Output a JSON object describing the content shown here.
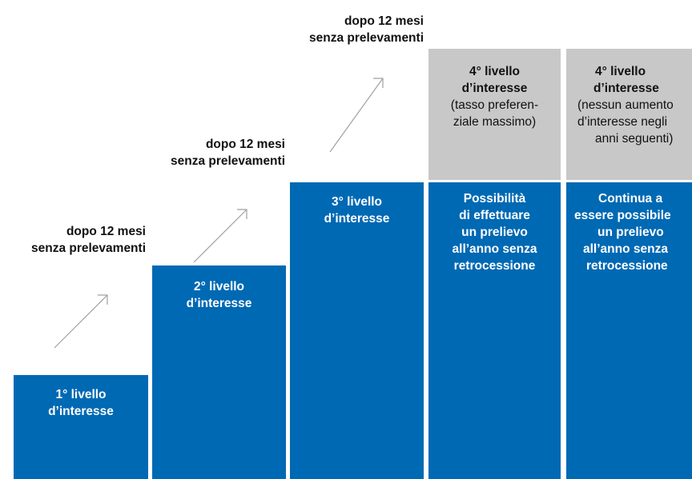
{
  "captions": [
    {
      "line1": "dopo 12 mesi",
      "line2": "senza prelevamenti"
    },
    {
      "line1": "dopo 12 mesi",
      "line2": "senza prelevamenti"
    },
    {
      "line1": "dopo 12 mesi",
      "line2": "senza prelevamenti"
    }
  ],
  "blocks": [
    {
      "lines": [
        "1° livello",
        "d’interesse"
      ]
    },
    {
      "lines": [
        "2° livello",
        "d’interesse"
      ]
    },
    {
      "lines": [
        "3° livello",
        "d’interesse"
      ]
    },
    {
      "lines": [
        "Possibilità",
        "di effettuare",
        "un prelievo",
        "all’anno senza",
        "retrocessione"
      ]
    },
    {
      "lines": [
        "Continua a",
        "essere possibile",
        "un prelievo",
        "all’anno senza",
        "retrocessione"
      ]
    }
  ],
  "grey_boxes": [
    {
      "title1": "4° livello",
      "title2": "d’interesse",
      "note": [
        "(tasso preferen-",
        "ziale massimo)"
      ]
    },
    {
      "title1": "4° livello",
      "title2": "d’interesse",
      "note": [
        "(nessun aumento",
        "d’interesse negli",
        "anni seguenti)"
      ]
    }
  ],
  "colors": {
    "block": "#0069b4",
    "grey": "#c8c8c8",
    "arrow": "#a0a0a0"
  }
}
